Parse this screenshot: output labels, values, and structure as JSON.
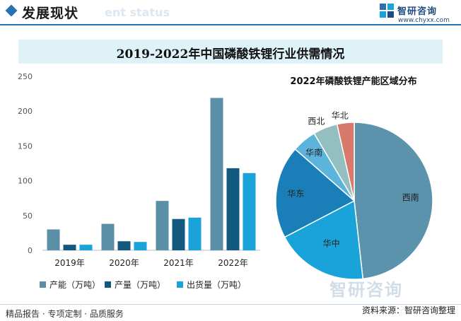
{
  "header": {
    "title": "发展现状",
    "ghost_text": "ent status"
  },
  "logo": {
    "name": "智研咨询",
    "url": "www.chyxx.com"
  },
  "banner": {
    "title": "2019-2022年中国磷酸铁锂行业供需情况"
  },
  "colors": {
    "accent": "#2a6fb0",
    "banner_bg": "#dff2f8",
    "series": [
      "#5b8fa8",
      "#13587e",
      "#1aa3d9"
    ],
    "pie": [
      "#5b93ad",
      "#1aa3d9",
      "#1a7fb8",
      "#5cb4dd",
      "#93bfc0",
      "#d87a6b"
    ]
  },
  "chart_data": [
    {
      "type": "bar",
      "categories": [
        "2019年",
        "2020年",
        "2021年",
        "2022年"
      ],
      "series": [
        {
          "name": "产能（万吨）",
          "values": [
            30,
            38,
            71,
            219
          ]
        },
        {
          "name": "产量（万吨）",
          "values": [
            8,
            13,
            45,
            118
          ]
        },
        {
          "name": "出货量（万吨）",
          "values": [
            8,
            12,
            47,
            111
          ]
        }
      ],
      "ylim": [
        0,
        250
      ],
      "yticks": [
        0,
        50,
        100,
        150,
        200,
        250
      ],
      "grid": false,
      "legend": "bottom"
    },
    {
      "type": "pie",
      "title": "2022年磷酸铁锂产能区域分布",
      "slices": [
        {
          "label": "西南",
          "value": 48
        },
        {
          "label": "华中",
          "value": 19
        },
        {
          "label": "华东",
          "value": 19
        },
        {
          "label": "华南",
          "value": 5
        },
        {
          "label": "西北",
          "value": 5
        },
        {
          "label": "华北",
          "value": 3.5
        }
      ]
    }
  ],
  "footer": {
    "slogan": "精品报告 · 专项定制 · 品质服务",
    "source": "资料来源：智研咨询整理"
  },
  "watermark": "智研咨询"
}
